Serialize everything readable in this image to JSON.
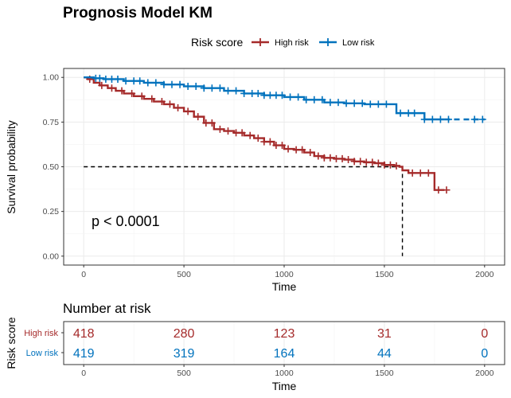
{
  "chart_data": [
    {
      "type": "line",
      "title": "Prognosis Model KM",
      "xlabel": "Time",
      "ylabel": "Survival probability",
      "xlim": [
        -100,
        2100
      ],
      "ylim": [
        -0.05,
        1.05
      ],
      "x_ticks": [
        0,
        500,
        1000,
        1500,
        2000
      ],
      "x_tick_labels": [
        "0",
        "500",
        "1000",
        "1500",
        "2000"
      ],
      "y_ticks": [
        0,
        0.25,
        0.5,
        0.75,
        1.0
      ],
      "y_tick_labels": [
        "0.00",
        "0.25",
        "0.50",
        "0.75",
        "1.00"
      ],
      "grid": true,
      "legend": {
        "title": "Risk score",
        "position": "top"
      },
      "annotation": "p < 0.0001",
      "median_line": {
        "y": 0.5,
        "x": 1590
      },
      "series": [
        {
          "name": "High risk",
          "color": "#A52A2A",
          "line_style": "solid",
          "x": [
            0,
            20,
            50,
            80,
            120,
            160,
            200,
            250,
            300,
            350,
            400,
            450,
            500,
            550,
            600,
            650,
            700,
            750,
            800,
            850,
            900,
            950,
            1000,
            1050,
            1100,
            1150,
            1200,
            1250,
            1300,
            1350,
            1400,
            1450,
            1500,
            1550,
            1575,
            1590,
            1620,
            1700,
            1750,
            1800
          ],
          "y": [
            1.0,
            0.99,
            0.97,
            0.955,
            0.94,
            0.925,
            0.91,
            0.895,
            0.88,
            0.865,
            0.85,
            0.83,
            0.81,
            0.78,
            0.745,
            0.71,
            0.7,
            0.69,
            0.675,
            0.66,
            0.64,
            0.62,
            0.6,
            0.595,
            0.58,
            0.56,
            0.55,
            0.545,
            0.54,
            0.53,
            0.525,
            0.52,
            0.51,
            0.505,
            0.5,
            0.48,
            0.465,
            0.465,
            0.37,
            0.37
          ],
          "censor_x": [
            30,
            90,
            140,
            190,
            240,
            290,
            340,
            390,
            430,
            470,
            520,
            570,
            610,
            640,
            680,
            720,
            760,
            790,
            830,
            870,
            900,
            930,
            960,
            990,
            1020,
            1060,
            1090,
            1130,
            1170,
            1200,
            1230,
            1260,
            1290,
            1320,
            1350,
            1380,
            1410,
            1440,
            1470,
            1500,
            1530,
            1560,
            1640,
            1680,
            1720,
            1770,
            1810
          ]
        },
        {
          "name": "Low risk",
          "color": "#0072BD",
          "line_style": "dashed-end",
          "x": [
            0,
            50,
            100,
            200,
            300,
            400,
            500,
            600,
            700,
            800,
            900,
            1000,
            1100,
            1200,
            1300,
            1400,
            1500,
            1560,
            1600,
            1700,
            1800,
            1900,
            2000
          ],
          "y": [
            1.0,
            0.995,
            0.99,
            0.98,
            0.97,
            0.96,
            0.95,
            0.94,
            0.925,
            0.91,
            0.9,
            0.89,
            0.875,
            0.86,
            0.855,
            0.85,
            0.85,
            0.8,
            0.8,
            0.765,
            0.765,
            0.765,
            0.765
          ],
          "dash_from_x": 1800,
          "censor_x": [
            60,
            80,
            110,
            140,
            170,
            210,
            250,
            280,
            320,
            360,
            400,
            440,
            480,
            520,
            560,
            600,
            640,
            680,
            720,
            760,
            800,
            840,
            870,
            900,
            930,
            960,
            990,
            1030,
            1070,
            1110,
            1150,
            1190,
            1230,
            1270,
            1310,
            1350,
            1390,
            1430,
            1470,
            1510,
            1580,
            1620,
            1650,
            1700,
            1740,
            1780,
            1820,
            1950,
            1990
          ]
        }
      ]
    },
    {
      "type": "table",
      "title": "Number at risk",
      "xlabel": "Time",
      "ylabel": "Risk score",
      "x_ticks": [
        0,
        500,
        1000,
        1500,
        2000
      ],
      "x_tick_labels": [
        "0",
        "500",
        "1000",
        "1500",
        "2000"
      ],
      "rows": [
        {
          "name": "High risk",
          "color": "#A52A2A",
          "values": [
            418,
            280,
            123,
            31,
            0
          ],
          "labels": [
            "418",
            "280",
            "123",
            "31",
            "0"
          ]
        },
        {
          "name": "Low risk",
          "color": "#0072BD",
          "values": [
            419,
            319,
            164,
            44,
            0
          ],
          "labels": [
            "419",
            "319",
            "164",
            "44",
            "0"
          ]
        }
      ]
    }
  ]
}
